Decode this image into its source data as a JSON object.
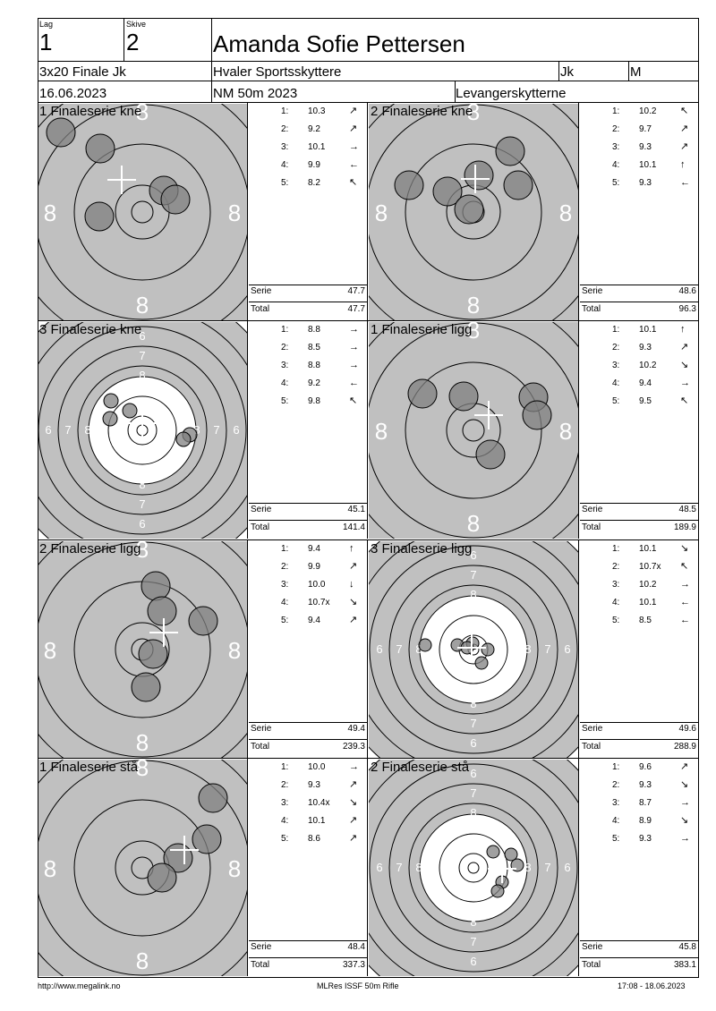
{
  "header": {
    "lag_label": "Lag",
    "lag_value": "1",
    "skive_label": "Skive",
    "skive_value": "2",
    "name": "Amanda Sofie Pettersen",
    "event": "3x20 Finale Jk",
    "club": "Hvaler Sportsskyttere",
    "class": "Jk",
    "gender": "M",
    "date": "16.06.2023",
    "competition": "NM 50m 2023",
    "organizer": "Levangerskytterne"
  },
  "labels": {
    "serie": "Serie",
    "total": "Total"
  },
  "series": [
    {
      "title": "1 Finaleserie kne",
      "target": "fine",
      "shots": [
        {
          "n": "1:",
          "v": "10.3",
          "a": "↗"
        },
        {
          "n": "2:",
          "v": "9.2",
          "a": "↗"
        },
        {
          "n": "3:",
          "v": "10.1",
          "a": "→"
        },
        {
          "n": "4:",
          "v": "9.9",
          "a": "←"
        },
        {
          "n": "5:",
          "v": "8.2",
          "a": "↖"
        }
      ],
      "serie": "47.7",
      "total": "47.7"
    },
    {
      "title": "2 Finaleserie kne",
      "target": "fine",
      "shots": [
        {
          "n": "1:",
          "v": "10.2",
          "a": "↖"
        },
        {
          "n": "2:",
          "v": "9.7",
          "a": "↗"
        },
        {
          "n": "3:",
          "v": "9.3",
          "a": "↗"
        },
        {
          "n": "4:",
          "v": "10.1",
          "a": "↑"
        },
        {
          "n": "5:",
          "v": "9.3",
          "a": "←"
        }
      ],
      "serie": "48.6",
      "total": "96.3"
    },
    {
      "title": "3 Finaleserie kne",
      "target": "full",
      "shots": [
        {
          "n": "1:",
          "v": "8.8",
          "a": "→"
        },
        {
          "n": "2:",
          "v": "8.5",
          "a": "→"
        },
        {
          "n": "3:",
          "v": "8.8",
          "a": "→"
        },
        {
          "n": "4:",
          "v": "9.2",
          "a": "←"
        },
        {
          "n": "5:",
          "v": "9.8",
          "a": "↖"
        }
      ],
      "serie": "45.1",
      "total": "141.4"
    },
    {
      "title": "1 Finaleserie ligg",
      "target": "fine",
      "shots": [
        {
          "n": "1:",
          "v": "10.1",
          "a": "↑"
        },
        {
          "n": "2:",
          "v": "9.3",
          "a": "↗"
        },
        {
          "n": "3:",
          "v": "10.2",
          "a": "↘"
        },
        {
          "n": "4:",
          "v": "9.4",
          "a": "→"
        },
        {
          "n": "5:",
          "v": "9.5",
          "a": "↖"
        }
      ],
      "serie": "48.5",
      "total": "189.9"
    },
    {
      "title": "2 Finaleserie ligg",
      "target": "fine",
      "shots": [
        {
          "n": "1:",
          "v": "9.4",
          "a": "↑"
        },
        {
          "n": "2:",
          "v": "9.9",
          "a": "↗"
        },
        {
          "n": "3:",
          "v": "10.0",
          "a": "↓"
        },
        {
          "n": "4:",
          "v": "10.7x",
          "a": "↘"
        },
        {
          "n": "5:",
          "v": "9.4",
          "a": "↗"
        }
      ],
      "serie": "49.4",
      "total": "239.3"
    },
    {
      "title": "3 Finaleserie ligg",
      "target": "full",
      "shots": [
        {
          "n": "1:",
          "v": "10.1",
          "a": "↘"
        },
        {
          "n": "2:",
          "v": "10.7x",
          "a": "↖"
        },
        {
          "n": "3:",
          "v": "10.2",
          "a": "→"
        },
        {
          "n": "4:",
          "v": "10.1",
          "a": "←"
        },
        {
          "n": "5:",
          "v": "8.5",
          "a": "←"
        }
      ],
      "serie": "49.6",
      "total": "288.9"
    },
    {
      "title": "1 Finaleserie stå",
      "target": "fine",
      "shots": [
        {
          "n": "1:",
          "v": "10.0",
          "a": "→"
        },
        {
          "n": "2:",
          "v": "9.3",
          "a": "↗"
        },
        {
          "n": "3:",
          "v": "10.4x",
          "a": "↘"
        },
        {
          "n": "4:",
          "v": "10.1",
          "a": "↗"
        },
        {
          "n": "5:",
          "v": "8.6",
          "a": "↗"
        }
      ],
      "serie": "48.4",
      "total": "337.3"
    },
    {
      "title": "2 Finaleserie stå",
      "target": "full",
      "shots": [
        {
          "n": "1:",
          "v": "9.6",
          "a": "↗"
        },
        {
          "n": "2:",
          "v": "9.3",
          "a": "↘"
        },
        {
          "n": "3:",
          "v": "8.7",
          "a": "→"
        },
        {
          "n": "4:",
          "v": "8.9",
          "a": "↘"
        },
        {
          "n": "5:",
          "v": "9.3",
          "a": "→"
        }
      ],
      "serie": "45.8",
      "total": "383.1"
    }
  ],
  "footer": {
    "left": "http://www.megalink.no",
    "center": "MLRes ISSF 50m Rifle",
    "right": "17:08 - 18.06.2023"
  },
  "colors": {
    "target_gray": "#c0c0c0",
    "shot_gray": "#808080"
  }
}
